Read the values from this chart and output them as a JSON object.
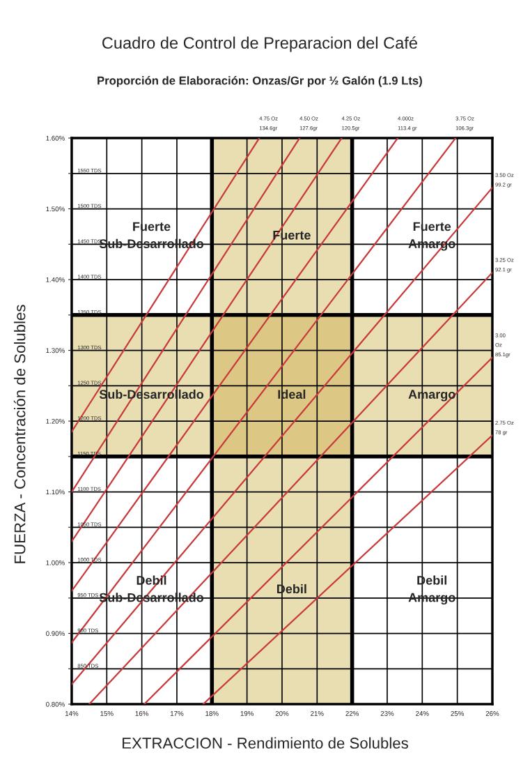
{
  "chart_data": {
    "type": "line",
    "title": "Cuadro de Control de Preparacion del Café",
    "subtitle": "Proporción de Elaboración: Onzas/Gr por ½ Galón (1.9 Lts)",
    "xlabel": "EXTRACCION - Rendimiento de Solubles",
    "ylabel": "FUERZA - Concentración de Solubles",
    "xlim": [
      14,
      26
    ],
    "ylim": [
      0.8,
      1.6
    ],
    "xticks": [
      {
        "value": 14,
        "label": "14%"
      },
      {
        "value": 15,
        "label": "15%"
      },
      {
        "value": 16,
        "label": "16%"
      },
      {
        "value": 17,
        "label": "17%"
      },
      {
        "value": 18,
        "label": "18%"
      },
      {
        "value": 19,
        "label": "19%"
      },
      {
        "value": 20,
        "label": "20%"
      },
      {
        "value": 21,
        "label": "21%"
      },
      {
        "value": 22,
        "label": "22%"
      },
      {
        "value": 23,
        "label": "23%"
      },
      {
        "value": 24,
        "label": "24%"
      },
      {
        "value": 25,
        "label": "25%"
      },
      {
        "value": 26,
        "label": "26%"
      }
    ],
    "yticks": [
      {
        "value": 0.8,
        "label": "0.80%"
      },
      {
        "value": 0.85,
        "label": null
      },
      {
        "value": 0.9,
        "label": "0.90%"
      },
      {
        "value": 0.95,
        "label": null
      },
      {
        "value": 1.0,
        "label": "1.00%"
      },
      {
        "value": 1.05,
        "label": null
      },
      {
        "value": 1.1,
        "label": "1.10%"
      },
      {
        "value": 1.15,
        "label": null
      },
      {
        "value": 1.2,
        "label": "1.20%"
      },
      {
        "value": 1.25,
        "label": null
      },
      {
        "value": 1.3,
        "label": "1.30%"
      },
      {
        "value": 1.35,
        "label": null
      },
      {
        "value": 1.4,
        "label": "1.40%"
      },
      {
        "value": 1.45,
        "label": null
      },
      {
        "value": 1.5,
        "label": "1.50%"
      },
      {
        "value": 1.55,
        "label": null
      },
      {
        "value": 1.6,
        "label": "1.60%"
      }
    ],
    "y2lim": [
      800,
      1600
    ],
    "y2ticks": [
      {
        "value": 850,
        "label": "850 TDS"
      },
      {
        "value": 900,
        "label": "900 TDS"
      },
      {
        "value": 950,
        "label": "950 TDS"
      },
      {
        "value": 1000,
        "label": "1000 TDS"
      },
      {
        "value": 1050,
        "label": "1050 TDS"
      },
      {
        "value": 1100,
        "label": "1100 TDS"
      },
      {
        "value": 1150,
        "label": "1150 TDS"
      },
      {
        "value": 1200,
        "label": "1200 TDS"
      },
      {
        "value": 1250,
        "label": "1250 TDS"
      },
      {
        "value": 1300,
        "label": "1300 TDS"
      },
      {
        "value": 1350,
        "label": "1350 TDS"
      },
      {
        "value": 1400,
        "label": "1400 TDS"
      },
      {
        "value": 1450,
        "label": "1450 TDS"
      },
      {
        "value": 1500,
        "label": "1500 TDS"
      },
      {
        "value": 1550,
        "label": "1550 TDS"
      }
    ],
    "grid": true,
    "legend": false,
    "bands": [
      {
        "axis": "x",
        "from": 18,
        "to": 22,
        "color": "#c9a93f"
      },
      {
        "axis": "y",
        "from": 1.15,
        "to": 1.35,
        "color": "#c9a93f"
      }
    ],
    "series": [
      {
        "name": "4.75 Oz\n134.6gr",
        "color": "#c8393b",
        "x": [
          14,
          19.35
        ],
        "values": [
          1.185,
          1.6
        ]
      },
      {
        "name": "4.50 Oz\n127.6gr",
        "color": "#c8393b",
        "x": [
          14,
          20.5
        ],
        "values": [
          1.1,
          1.6
        ]
      },
      {
        "name": "4.25 Oz\n120.5gr",
        "color": "#c8393b",
        "x": [
          14,
          21.7
        ],
        "values": [
          1.03,
          1.6
        ]
      },
      {
        "name": "4.000z\n113.4 gr",
        "color": "#c8393b",
        "x": [
          14,
          23.3
        ],
        "values": [
          0.96,
          1.6
        ]
      },
      {
        "name": "3.75 Oz\n106.3gr",
        "color": "#c8393b",
        "x": [
          14,
          24.95
        ],
        "values": [
          0.887,
          1.6
        ]
      },
      {
        "name": "3.50 Oz\n99.2 gr",
        "color": "#c8393b",
        "x": [
          14,
          26
        ],
        "values": [
          0.828,
          1.53
        ]
      },
      {
        "name": "3.25 Oz\n92.1 gr",
        "color": "#c8393b",
        "x": [
          14.5,
          26
        ],
        "values": [
          0.8,
          1.41
        ]
      },
      {
        "name": "3.00\nOz\n85.1gr",
        "color": "#c8393b",
        "x": [
          16.07,
          26
        ],
        "values": [
          0.8,
          1.29
        ]
      },
      {
        "name": "2.75 Oz\n78 gr",
        "color": "#c8393b",
        "x": [
          17.75,
          26
        ],
        "values": [
          0.8,
          1.18
        ]
      }
    ],
    "annotations": [
      "Fuerte\nSub-Desarrollado",
      "Fuerte",
      "Fuerte\nAmargo",
      "Sub-Desarrollado",
      "Ideal",
      "Amargo",
      "Debil\nSub-Desarrollado",
      "Debil",
      "Debil\nAmargo"
    ]
  }
}
